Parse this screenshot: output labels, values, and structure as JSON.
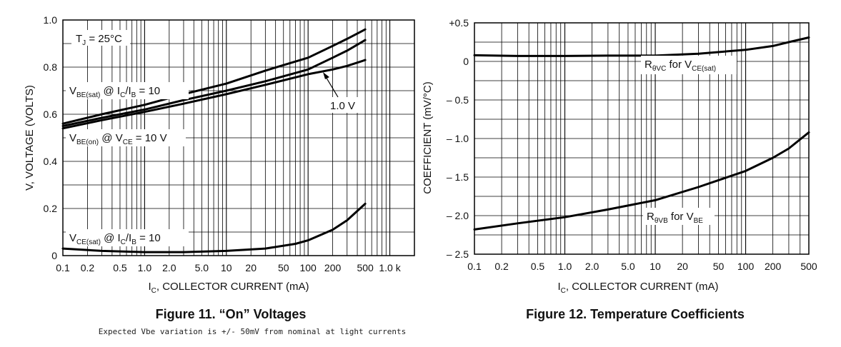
{
  "chart_data": [
    {
      "type": "line",
      "title": "Figure 11. “On” Voltages",
      "subtitle": "Expected Vbe variation is +/- 50mV from nominal at light currents",
      "xlabel": "IC, COLLECTOR CURRENT (mA)",
      "ylabel": "V, VOLTAGE (VOLTS)",
      "xscale": "log",
      "xlim": [
        0.1,
        2000
      ],
      "ylim": [
        0,
        1.0
      ],
      "xticks": [
        {
          "v": 0.1,
          "label": "0.1"
        },
        {
          "v": 0.2,
          "label": "0.2"
        },
        {
          "v": 0.5,
          "label": "0.5"
        },
        {
          "v": 1,
          "label": "1.0"
        },
        {
          "v": 2,
          "label": "2.0"
        },
        {
          "v": 5,
          "label": "5.0"
        },
        {
          "v": 10,
          "label": "10"
        },
        {
          "v": 20,
          "label": "20"
        },
        {
          "v": 50,
          "label": "50"
        },
        {
          "v": 100,
          "label": "100"
        },
        {
          "v": 200,
          "label": "200"
        },
        {
          "v": 500,
          "label": "500"
        },
        {
          "v": 1000,
          "label": "1.0 k"
        }
      ],
      "yticks": [
        {
          "v": 0,
          "label": "0"
        },
        {
          "v": 0.2,
          "label": "0.2"
        },
        {
          "v": 0.4,
          "label": "0.4"
        },
        {
          "v": 0.6,
          "label": "0.6"
        },
        {
          "v": 0.8,
          "label": "0.8"
        },
        {
          "v": 1.0,
          "label": "1.0"
        }
      ],
      "series": [
        {
          "name": "VBE(sat) @ IC/IB = 10",
          "points": [
            [
              0.1,
              0.56
            ],
            [
              0.3,
              0.6
            ],
            [
              1,
              0.64
            ],
            [
              3,
              0.685
            ],
            [
              10,
              0.73
            ],
            [
              30,
              0.785
            ],
            [
              100,
              0.84
            ],
            [
              200,
              0.89
            ],
            [
              300,
              0.92
            ],
            [
              500,
              0.96
            ]
          ]
        },
        {
          "name": "VBE(sat) @ IC/IB = 1.0 V",
          "points": [
            [
              0.1,
              0.55
            ],
            [
              0.3,
              0.585
            ],
            [
              1,
              0.62
            ],
            [
              3,
              0.66
            ],
            [
              10,
              0.7
            ],
            [
              30,
              0.74
            ],
            [
              100,
              0.79
            ],
            [
              200,
              0.84
            ],
            [
              300,
              0.87
            ],
            [
              500,
              0.915
            ]
          ]
        },
        {
          "name": "VBE(on) @ VCE = 10 V",
          "points": [
            [
              0.1,
              0.54
            ],
            [
              0.3,
              0.575
            ],
            [
              1,
              0.61
            ],
            [
              3,
              0.645
            ],
            [
              10,
              0.685
            ],
            [
              30,
              0.725
            ],
            [
              100,
              0.77
            ],
            [
              200,
              0.79
            ],
            [
              300,
              0.805
            ],
            [
              500,
              0.83
            ]
          ]
        },
        {
          "name": "VCE(sat) @ IC/IB = 10",
          "points": [
            [
              0.1,
              0.03
            ],
            [
              0.3,
              0.02
            ],
            [
              1,
              0.015
            ],
            [
              3,
              0.015
            ],
            [
              10,
              0.02
            ],
            [
              30,
              0.03
            ],
            [
              70,
              0.05
            ],
            [
              100,
              0.065
            ],
            [
              200,
              0.11
            ],
            [
              300,
              0.15
            ],
            [
              500,
              0.22
            ]
          ]
        }
      ],
      "annotations": {
        "tj": {
          "main": "T",
          "sub": "J",
          "tail": " = 25°C"
        },
        "vbe_sat": {
          "a": "V",
          "sub1": "BE(sat)",
          "b": " @ I",
          "sub2": "C",
          "c": "/I",
          "sub3": "B",
          "d": " = 10"
        },
        "onev": "1.0 V",
        "vbe_on": {
          "a": "V",
          "sub1": "BE(on)",
          "b": " @ V",
          "sub2": "CE",
          "c": " = 10 V"
        },
        "vce_sat": {
          "a": "V",
          "sub1": "CE(sat)",
          "b": " @ I",
          "sub2": "C",
          "c": "/I",
          "sub3": "B",
          "d": " = 10"
        }
      },
      "xlabel_parts": {
        "a": "I",
        "sub": "C",
        "b": ", COLLECTOR CURRENT (mA)"
      }
    },
    {
      "type": "line",
      "title": "Figure 12. Temperature Coefficients",
      "xlabel": "IC, COLLECTOR CURRENT (mA)",
      "ylabel": "COEFFICIENT (mV/°C)",
      "xscale": "log",
      "xlim": [
        0.1,
        500
      ],
      "ylim": [
        -2.5,
        0.5
      ],
      "xticks": [
        {
          "v": 0.1,
          "label": "0.1"
        },
        {
          "v": 0.2,
          "label": "0.2"
        },
        {
          "v": 0.5,
          "label": "0.5"
        },
        {
          "v": 1,
          "label": "1.0"
        },
        {
          "v": 2,
          "label": "2.0"
        },
        {
          "v": 5,
          "label": "5.0"
        },
        {
          "v": 10,
          "label": "10"
        },
        {
          "v": 20,
          "label": "20"
        },
        {
          "v": 50,
          "label": "50"
        },
        {
          "v": 100,
          "label": "100"
        },
        {
          "v": 200,
          "label": "200"
        },
        {
          "v": 500,
          "label": "500"
        }
      ],
      "yticks": [
        {
          "v": 0.5,
          "label": "+0.5"
        },
        {
          "v": 0,
          "label": "0"
        },
        {
          "v": -0.5,
          "label": "– 0.5"
        },
        {
          "v": -1.0,
          "label": "– 1.0"
        },
        {
          "v": -1.5,
          "label": "– 1.5"
        },
        {
          "v": -2.0,
          "label": "– 2.0"
        },
        {
          "v": -2.5,
          "label": "– 2.5"
        }
      ],
      "series": [
        {
          "name": "RθVC for VCE(sat)",
          "points": [
            [
              0.1,
              0.08
            ],
            [
              0.3,
              0.07
            ],
            [
              1,
              0.07
            ],
            [
              3,
              0.075
            ],
            [
              10,
              0.075
            ],
            [
              30,
              0.1
            ],
            [
              100,
              0.15
            ],
            [
              200,
              0.2
            ],
            [
              300,
              0.25
            ],
            [
              500,
              0.31
            ]
          ]
        },
        {
          "name": "RθVB for VBE",
          "points": [
            [
              0.1,
              -2.18
            ],
            [
              0.3,
              -2.1
            ],
            [
              1,
              -2.02
            ],
            [
              3,
              -1.92
            ],
            [
              10,
              -1.8
            ],
            [
              30,
              -1.63
            ],
            [
              100,
              -1.42
            ],
            [
              200,
              -1.25
            ],
            [
              300,
              -1.13
            ],
            [
              500,
              -0.92
            ]
          ]
        }
      ],
      "annotations": {
        "r_vc": {
          "a": "R",
          "sub1": "θVC",
          "b": " for V",
          "sub2": "CE(sat)"
        },
        "r_vb": {
          "a": "R",
          "sub1": "θVB",
          "b": " for V",
          "sub2": "BE"
        }
      },
      "xlabel_parts": {
        "a": "I",
        "sub": "C",
        "b": ", COLLECTOR CURRENT (mA)"
      }
    }
  ]
}
